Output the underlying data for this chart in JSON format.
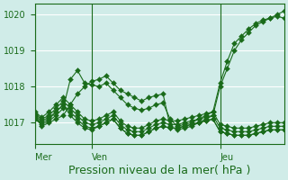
{
  "background_color": "#d0ece8",
  "grid_color": "#ffffff",
  "line_color": "#1a6b1a",
  "marker": "D",
  "marker_size": 3,
  "ylim": [
    1016.4,
    1020.3
  ],
  "yticks": [
    1017,
    1018,
    1019,
    1020
  ],
  "xlabel": "Pression niveau de la mer( hPa )",
  "xlabel_fontsize": 9,
  "tick_label_fontsize": 7,
  "day_labels": [
    "Mer",
    "Ven",
    "Jeu"
  ],
  "day_positions": [
    0,
    8,
    26
  ],
  "total_points": 36,
  "series": [
    [
      1017.2,
      1016.9,
      1017.0,
      1017.1,
      1017.2,
      1017.5,
      1017.8,
      1018.0,
      1018.15,
      1018.2,
      1018.3,
      1018.1,
      1017.9,
      1017.8,
      1017.7,
      1017.6,
      1017.7,
      1017.75,
      1017.8,
      1016.9,
      1016.8,
      1016.85,
      1016.9,
      1017.0,
      1017.1,
      1017.2,
      1018.0,
      1018.5,
      1019.0,
      1019.3,
      1019.5,
      1019.7,
      1019.8,
      1019.9,
      1020.0,
      1020.1
    ],
    [
      1017.1,
      1016.95,
      1017.05,
      1017.2,
      1017.4,
      1018.2,
      1018.45,
      1018.1,
      1018.05,
      1018.0,
      1018.1,
      1017.9,
      1017.7,
      1017.5,
      1017.4,
      1017.35,
      1017.4,
      1017.5,
      1017.55,
      1017.1,
      1016.9,
      1016.95,
      1017.0,
      1017.1,
      1017.2,
      1017.3,
      1018.1,
      1018.7,
      1019.2,
      1019.4,
      1019.6,
      1019.75,
      1019.85,
      1019.9,
      1019.95,
      1019.9
    ],
    [
      1017.15,
      1017.0,
      1017.1,
      1017.3,
      1017.5,
      1017.2,
      1017.0,
      1016.85,
      1016.8,
      1016.9,
      1017.0,
      1017.1,
      1016.85,
      1016.7,
      1016.65,
      1016.65,
      1016.75,
      1016.85,
      1016.9,
      1016.85,
      1016.85,
      1016.9,
      1016.95,
      1017.0,
      1017.05,
      1017.1,
      1016.75,
      1016.7,
      1016.65,
      1016.65,
      1016.65,
      1016.7,
      1016.75,
      1016.8,
      1016.8,
      1016.8
    ],
    [
      1017.2,
      1017.05,
      1017.15,
      1017.3,
      1017.5,
      1017.3,
      1017.1,
      1016.9,
      1016.85,
      1016.9,
      1017.0,
      1017.1,
      1016.85,
      1016.7,
      1016.65,
      1016.65,
      1016.75,
      1016.85,
      1016.9,
      1016.85,
      1016.85,
      1016.9,
      1016.95,
      1017.0,
      1017.05,
      1017.1,
      1016.75,
      1016.7,
      1016.65,
      1016.65,
      1016.65,
      1016.7,
      1016.75,
      1016.8,
      1016.8,
      1016.8
    ],
    [
      1017.25,
      1017.1,
      1017.2,
      1017.4,
      1017.6,
      1017.4,
      1017.2,
      1017.0,
      1016.95,
      1017.0,
      1017.1,
      1017.2,
      1016.95,
      1016.8,
      1016.75,
      1016.75,
      1016.85,
      1016.95,
      1017.0,
      1016.95,
      1016.95,
      1017.0,
      1017.05,
      1017.1,
      1017.15,
      1017.2,
      1016.85,
      1016.8,
      1016.75,
      1016.75,
      1016.75,
      1016.8,
      1016.85,
      1016.9,
      1016.9,
      1016.9
    ],
    [
      1017.3,
      1017.15,
      1017.3,
      1017.5,
      1017.7,
      1017.5,
      1017.3,
      1017.1,
      1017.05,
      1017.1,
      1017.2,
      1017.3,
      1017.05,
      1016.9,
      1016.85,
      1016.85,
      1016.95,
      1017.05,
      1017.1,
      1017.05,
      1017.05,
      1017.1,
      1017.15,
      1017.2,
      1017.25,
      1017.3,
      1016.95,
      1016.9,
      1016.85,
      1016.85,
      1016.85,
      1016.9,
      1016.95,
      1017.0,
      1017.0,
      1017.0
    ]
  ]
}
